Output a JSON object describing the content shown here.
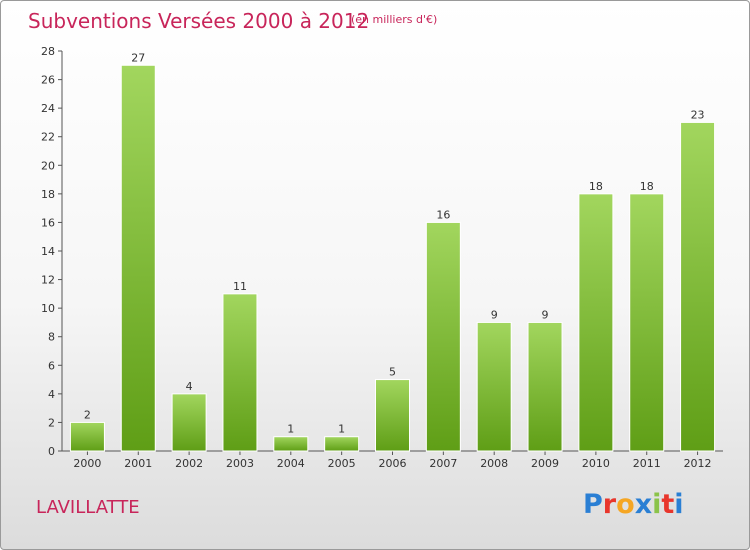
{
  "header": {
    "title": "Subventions Versées 2000 à 2012",
    "subtitle": "(en milliers d'€)"
  },
  "footer": {
    "commune": "LAVILLATTE",
    "logo_text": "Proxiti",
    "logo_colors": [
      "#2a7fd4",
      "#e8362c",
      "#f5a623",
      "#2a7fd4",
      "#8bc34a",
      "#e8362c",
      "#2a7fd4"
    ]
  },
  "colors": {
    "title": "#c8255a",
    "bar_top": "#9fd45a",
    "bar_bottom": "#5e9e14",
    "axis": "#555555",
    "grid": "#cccccc"
  },
  "chart_data": {
    "type": "bar",
    "title": "Subventions Versées 2000 à 2012",
    "subtitle": "(en milliers d'€)",
    "categories": [
      "2000",
      "2001",
      "2002",
      "2003",
      "2004",
      "2005",
      "2006",
      "2007",
      "2008",
      "2009",
      "2010",
      "2011",
      "2012"
    ],
    "values": [
      2,
      27,
      4,
      11,
      1,
      1,
      5,
      16,
      9,
      9,
      18,
      18,
      23
    ],
    "ylim": [
      0,
      28
    ],
    "yticks": [
      0,
      2,
      4,
      6,
      8,
      10,
      12,
      14,
      16,
      18,
      20,
      22,
      24,
      26,
      28
    ],
    "grid": false,
    "data_labels": true
  }
}
